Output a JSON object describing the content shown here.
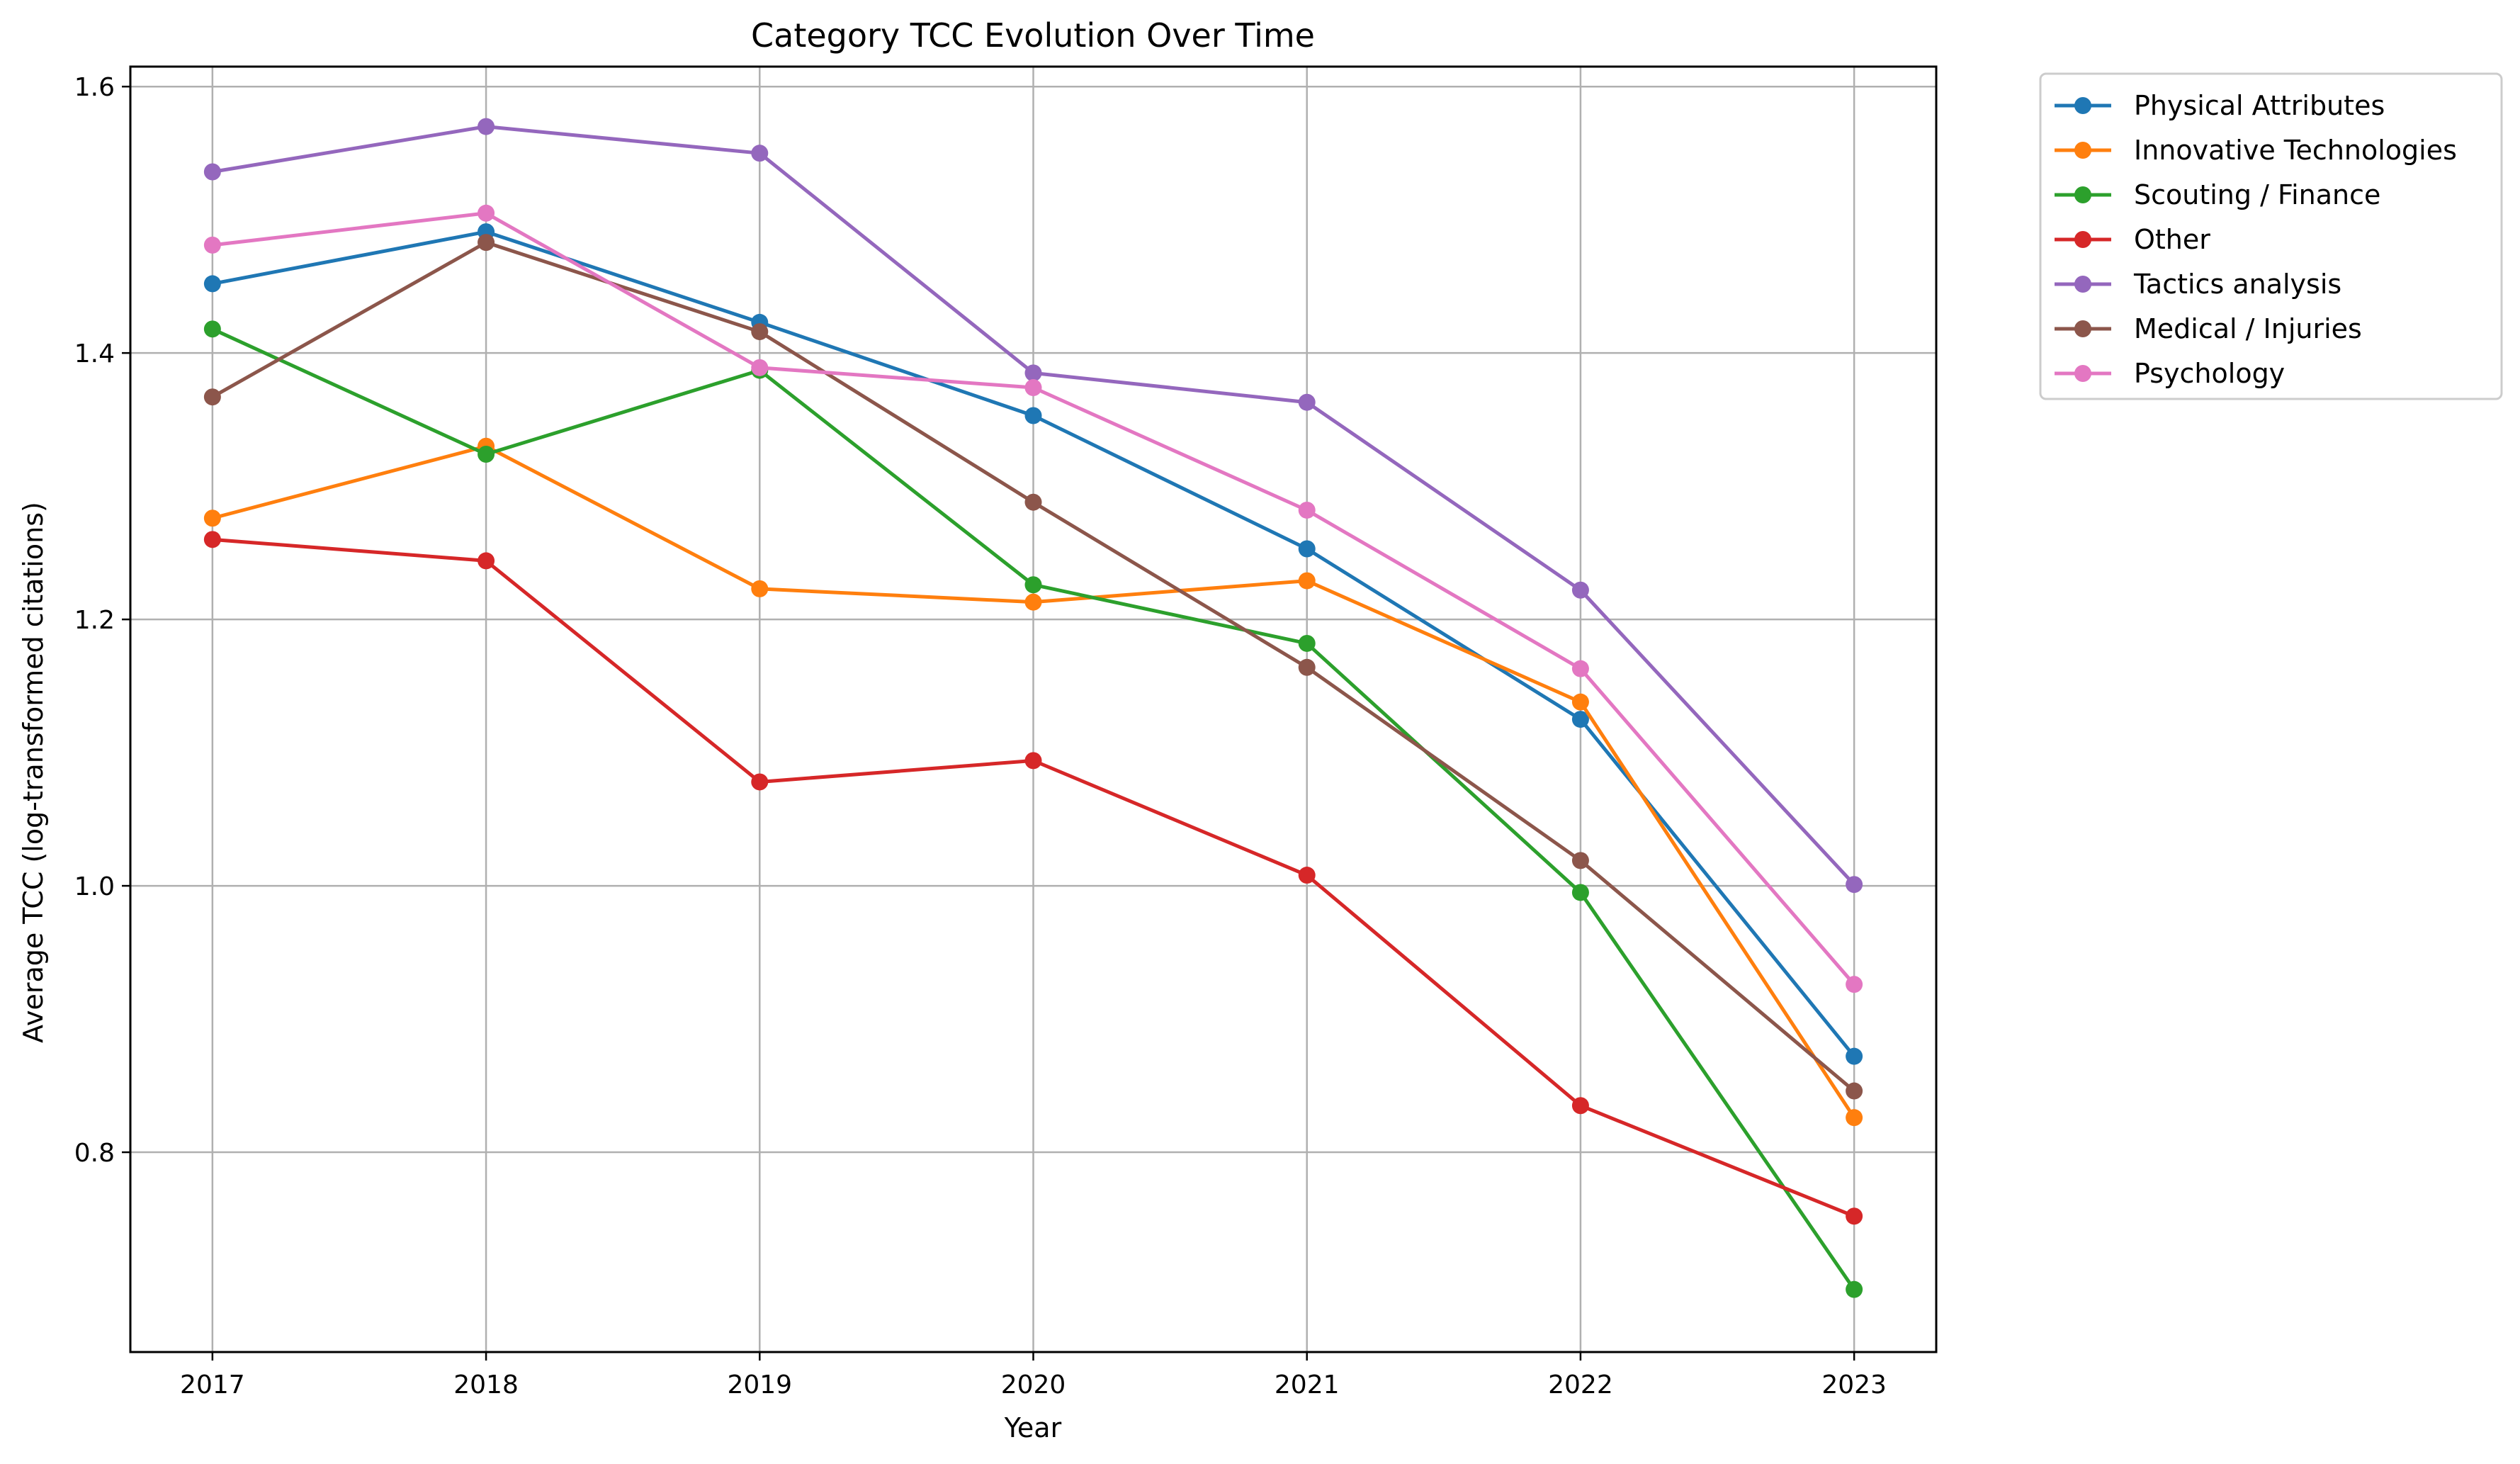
{
  "chart_data": {
    "type": "line",
    "title": "Category TCC Evolution Over Time",
    "xlabel": "Year",
    "ylabel": "Average TCC (log-transformed citations)",
    "x": [
      2017,
      2018,
      2019,
      2020,
      2021,
      2022,
      2023
    ],
    "x_tick_labels": [
      "2017",
      "2018",
      "2019",
      "2020",
      "2021",
      "2022",
      "2023"
    ],
    "xlim": [
      2016.7,
      2023.3
    ],
    "yticks": [
      0.8,
      1.0,
      1.2,
      1.4,
      1.6
    ],
    "y_tick_labels": [
      "0.8",
      "1.0",
      "1.2",
      "1.4",
      "1.6"
    ],
    "ylim": [
      0.65,
      1.615
    ],
    "grid": true,
    "legend_placement": "outside right, top",
    "series": [
      {
        "name": "Physical Attributes",
        "color": "#1f77b4",
        "values": [
          1.452,
          1.491,
          1.423,
          1.353,
          1.253,
          1.125,
          0.872
        ]
      },
      {
        "name": "Innovative Technologies",
        "color": "#ff7f0e",
        "values": [
          1.276,
          1.33,
          1.223,
          1.213,
          1.229,
          1.138,
          0.826
        ]
      },
      {
        "name": "Scouting / Finance",
        "color": "#2ca02c",
        "values": [
          1.418,
          1.324,
          1.387,
          1.226,
          1.182,
          0.995,
          0.697
        ]
      },
      {
        "name": "Other",
        "color": "#d62728",
        "values": [
          1.26,
          1.244,
          1.078,
          1.094,
          1.008,
          0.835,
          0.752
        ]
      },
      {
        "name": "Tactics analysis",
        "color": "#9467bd",
        "values": [
          1.536,
          1.57,
          1.55,
          1.385,
          1.363,
          1.222,
          1.001
        ]
      },
      {
        "name": "Medical / Injuries",
        "color": "#8c564b",
        "values": [
          1.367,
          1.483,
          1.416,
          1.288,
          1.164,
          1.019,
          0.846
        ]
      },
      {
        "name": "Psychology",
        "color": "#e377c2",
        "values": [
          1.481,
          1.505,
          1.389,
          1.374,
          1.282,
          1.163,
          0.926
        ]
      }
    ]
  }
}
